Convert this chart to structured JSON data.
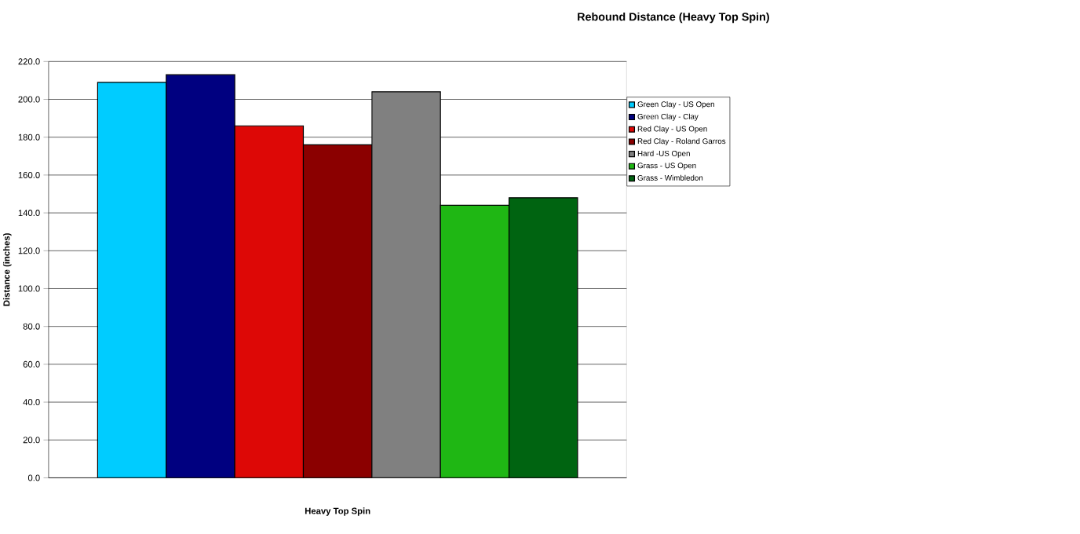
{
  "chart_data": {
    "type": "bar",
    "title": "Rebound Distance (Heavy Top Spin)",
    "xlabel": "Heavy Top Spin",
    "ylabel": "Distance (inches)",
    "categories": [
      null
    ],
    "series": [
      {
        "name": "Green Clay - US Open",
        "color": "#00ccff",
        "values": [
          209
        ]
      },
      {
        "name": "Green Clay - Clay",
        "color": "#000080",
        "values": [
          213
        ]
      },
      {
        "name": "Red Clay - US Open",
        "color": "#dd0806",
        "values": [
          186
        ]
      },
      {
        "name": "Red Clay - Roland Garros",
        "color": "#8b0000",
        "values": [
          176
        ]
      },
      {
        "name": "Hard -US Open",
        "color": "#808080",
        "values": [
          204
        ]
      },
      {
        "name": "Grass - US Open",
        "color": "#1fb714",
        "values": [
          144
        ]
      },
      {
        "name": "Grass - Wimbledon",
        "color": "#006411",
        "values": [
          148
        ]
      }
    ],
    "ylim": [
      0,
      220
    ],
    "yticks": [
      {
        "value": 0,
        "label": "0.0"
      },
      {
        "value": 20,
        "label": "20.0"
      },
      {
        "value": 40,
        "label": "40.0"
      },
      {
        "value": 60,
        "label": "60.0"
      },
      {
        "value": 80,
        "label": "80.0"
      },
      {
        "value": 100,
        "label": "100.0"
      },
      {
        "value": 120,
        "label": "120.0"
      },
      {
        "value": 140,
        "label": "140.0"
      },
      {
        "value": 160,
        "label": "160.0"
      },
      {
        "value": 180,
        "label": "180.0"
      },
      {
        "value": 200,
        "label": "200.0"
      },
      {
        "value": 220,
        "label": "220.0"
      }
    ],
    "grid": "y",
    "legend": "right"
  }
}
